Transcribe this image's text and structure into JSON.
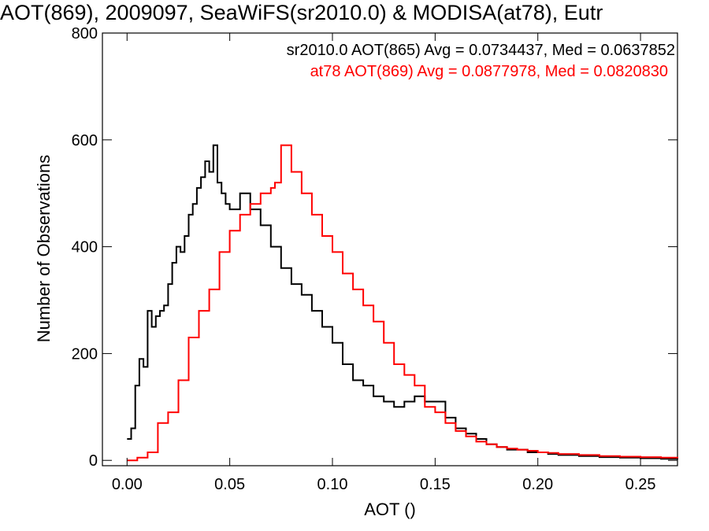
{
  "chart_data": {
    "type": "line",
    "title": "AOT(869), 2009097, SeaWiFS(sr2010.0) & MODISA(at78), Eutr",
    "xlabel": "AOT ()",
    "ylabel": "Number of Observations",
    "xlim": [
      -0.012,
      0.268
    ],
    "ylim": [
      -10,
      800
    ],
    "xticks": [
      0.0,
      0.05,
      0.1,
      0.15,
      0.2,
      0.25
    ],
    "xtick_labels": [
      "0.00",
      "0.05",
      "0.10",
      "0.15",
      "0.20",
      "0.25"
    ],
    "yticks": [
      0,
      200,
      400,
      600,
      800
    ],
    "ytick_labels": [
      "0",
      "200",
      "400",
      "600",
      "800"
    ],
    "grid": false,
    "series": [
      {
        "name": "sr2010.0",
        "stat_label": "sr2010.0 AOT(865) Avg = 0.0734437, Med = 0.0637852",
        "color": "#000000",
        "x": [
          0.0,
          0.002,
          0.004,
          0.006,
          0.008,
          0.01,
          0.012,
          0.014,
          0.016,
          0.018,
          0.02,
          0.022,
          0.024,
          0.026,
          0.028,
          0.03,
          0.032,
          0.034,
          0.036,
          0.038,
          0.04,
          0.042,
          0.044,
          0.046,
          0.048,
          0.05,
          0.055,
          0.06,
          0.065,
          0.07,
          0.075,
          0.08,
          0.085,
          0.09,
          0.095,
          0.1,
          0.105,
          0.11,
          0.115,
          0.12,
          0.125,
          0.13,
          0.135,
          0.14,
          0.145,
          0.15,
          0.155,
          0.16,
          0.165,
          0.17,
          0.175,
          0.18,
          0.185,
          0.19,
          0.195,
          0.2,
          0.205,
          0.21,
          0.22,
          0.23,
          0.24,
          0.25,
          0.26,
          0.268
        ],
        "values": [
          40,
          60,
          140,
          190,
          175,
          280,
          250,
          270,
          280,
          290,
          330,
          370,
          400,
          390,
          420,
          460,
          480,
          510,
          530,
          560,
          540,
          590,
          520,
          500,
          480,
          470,
          500,
          470,
          440,
          400,
          360,
          330,
          310,
          280,
          250,
          220,
          180,
          150,
          140,
          120,
          110,
          100,
          110,
          120,
          110,
          110,
          80,
          60,
          50,
          40,
          30,
          25,
          20,
          20,
          15,
          15,
          12,
          10,
          8,
          6,
          5,
          4,
          3,
          2
        ]
      },
      {
        "name": "at78",
        "stat_label": "at78 AOT(869) Avg = 0.0877978, Med = 0.0820830",
        "color": "#ff0000",
        "x": [
          0.0,
          0.005,
          0.01,
          0.015,
          0.02,
          0.025,
          0.03,
          0.035,
          0.04,
          0.045,
          0.05,
          0.055,
          0.06,
          0.065,
          0.07,
          0.072,
          0.075,
          0.08,
          0.085,
          0.09,
          0.095,
          0.1,
          0.105,
          0.11,
          0.115,
          0.12,
          0.125,
          0.13,
          0.135,
          0.14,
          0.145,
          0.15,
          0.155,
          0.16,
          0.165,
          0.17,
          0.175,
          0.18,
          0.185,
          0.19,
          0.195,
          0.2,
          0.205,
          0.21,
          0.22,
          0.23,
          0.24,
          0.25,
          0.26,
          0.268
        ],
        "values": [
          0,
          5,
          15,
          70,
          90,
          150,
          230,
          280,
          320,
          390,
          430,
          460,
          480,
          500,
          510,
          520,
          590,
          540,
          500,
          460,
          420,
          390,
          350,
          320,
          290,
          260,
          220,
          180,
          160,
          140,
          100,
          90,
          70,
          55,
          45,
          35,
          30,
          25,
          22,
          20,
          18,
          15,
          14,
          12,
          10,
          8,
          7,
          6,
          5,
          4
        ]
      }
    ]
  }
}
